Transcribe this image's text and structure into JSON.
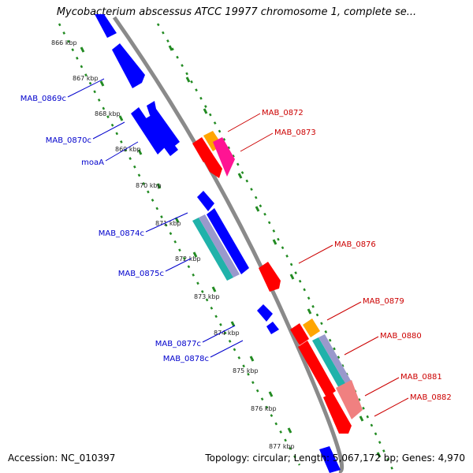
{
  "title": "Mycobacterium abscessus ATCC 19977 chromosome 1, complete se...",
  "footer": {
    "accession": "Accession: NC_010397",
    "summary": "Topology: circular; Length: 5,067,172 bp; Genes: 4,970"
  },
  "colors": {
    "backbone": "#8a8a8a",
    "dotted_guides": "#228b22",
    "forward_gene": "#ff0000",
    "reverse_gene": "#0000ff",
    "left_label": "#0000cc",
    "right_label": "#cc0000"
  },
  "kbp_ticks": [
    "866 kbp",
    "867 kbp",
    "868 kbp",
    "869 kbp",
    "870 kbp",
    "871 kbp",
    "872 kbp",
    "873 kbp",
    "874 kbp",
    "875 kbp",
    "876 kbp",
    "877 kbp"
  ],
  "left_labels": [
    "MAB_0869c",
    "MAB_0870c",
    "moaA",
    "MAB_0874c",
    "MAB_0875c",
    "MAB_0877c",
    "MAB_0878c"
  ],
  "right_labels": [
    "MAB_0872",
    "MAB_0873",
    "MAB_0876",
    "MAB_0879",
    "MAB_0880",
    "MAB_0881",
    "MAB_0882"
  ]
}
